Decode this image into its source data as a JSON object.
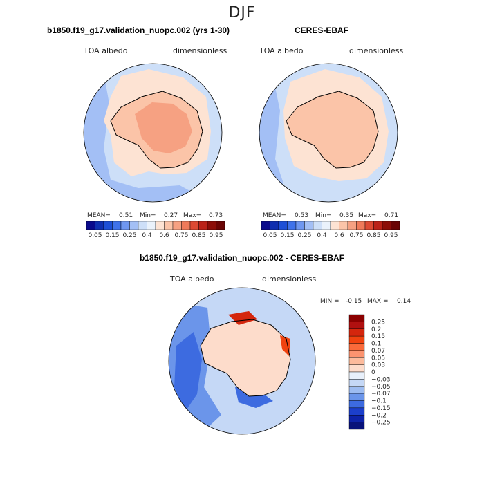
{
  "season": "DJF",
  "chart_data": [
    {
      "type": "heatmap",
      "title": "b1850.f19_g17.validation_nuopc.002 (yrs 1-30)",
      "variable": "TOA albedo",
      "units": "dimensionless",
      "projection": "south polar stereographic",
      "stats": {
        "mean_label": "MEAN=",
        "mean": "0.51",
        "min_label": "Min=",
        "min": "0.27",
        "max_label": "Max=",
        "max": "0.73"
      },
      "levels": [
        0.05,
        0.1,
        0.15,
        0.2,
        0.25,
        0.3,
        0.4,
        0.5,
        0.6,
        0.7,
        0.75,
        0.8,
        0.85,
        0.9,
        0.95
      ],
      "tick_labels": [
        "0.05",
        "0.15",
        "0.25",
        "0.4",
        "0.6",
        "0.75",
        "0.85",
        "0.95"
      ],
      "colors": [
        "#0a0a8c",
        "#0f2fb0",
        "#1d4fd6",
        "#3f72ea",
        "#6f97f0",
        "#a3bff5",
        "#cddff8",
        "#eaf2fb",
        "#fde3d3",
        "#fbc4a8",
        "#f6a182",
        "#ef7a5a",
        "#dd4a33",
        "#bb2218",
        "#8c0d08",
        "#6a0404"
      ]
    },
    {
      "type": "heatmap",
      "title": "CERES-EBAF",
      "variable": "TOA albedo",
      "units": "dimensionless",
      "projection": "south polar stereographic",
      "stats": {
        "mean_label": "MEAN=",
        "mean": "0.53",
        "min_label": "Min=",
        "min": "0.35",
        "max_label": "Max=",
        "max": "0.71"
      },
      "levels": [
        0.05,
        0.1,
        0.15,
        0.2,
        0.25,
        0.3,
        0.4,
        0.5,
        0.6,
        0.7,
        0.75,
        0.8,
        0.85,
        0.9,
        0.95
      ],
      "tick_labels": [
        "0.05",
        "0.15",
        "0.25",
        "0.4",
        "0.6",
        "0.75",
        "0.85",
        "0.95"
      ],
      "colors": [
        "#0a0a8c",
        "#0f2fb0",
        "#1d4fd6",
        "#3f72ea",
        "#6f97f0",
        "#a3bff5",
        "#cddff8",
        "#eaf2fb",
        "#fde3d3",
        "#fbc4a8",
        "#f6a182",
        "#ef7a5a",
        "#dd4a33",
        "#bb2218",
        "#8c0d08",
        "#6a0404"
      ]
    },
    {
      "type": "heatmap",
      "title": "b1850.f19_g17.validation_nuopc.002 - CERES-EBAF",
      "variable": "TOA albedo",
      "units": "dimensionless",
      "projection": "south polar stereographic",
      "stats": {
        "min_label": "MIN =",
        "min": "-0.15",
        "max_label": "MAX =",
        "max": "0.14"
      },
      "levels": [
        -0.25,
        -0.2,
        -0.15,
        -0.1,
        -0.07,
        -0.05,
        -0.03,
        0,
        0.03,
        0.05,
        0.07,
        0.1,
        0.15,
        0.2,
        0.25
      ],
      "tick_labels": [
        "0.25",
        "0.2",
        "0.15",
        "0.1",
        "0.07",
        "0.05",
        "0.03",
        "0",
        "−0.03",
        "−0.05",
        "−0.07",
        "−0.1",
        "−0.15",
        "−0.2",
        "−0.25"
      ],
      "colors": [
        "#8b0000",
        "#b01010",
        "#d4260d",
        "#f0420f",
        "#fa6a3a",
        "#fc9470",
        "#fdbb9c",
        "#fddccb",
        "#e8f0fb",
        "#c5d8f6",
        "#9dbcf1",
        "#6b95ea",
        "#3d6be0",
        "#1c3fcb",
        "#0d22a8",
        "#08127a"
      ]
    }
  ]
}
